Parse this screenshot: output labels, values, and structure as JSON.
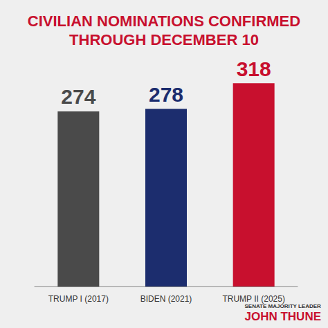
{
  "chart_data": {
    "type": "bar",
    "title": "CIVILIAN NOMINATIONS CONFIRMED THROUGH DECEMBER 10",
    "categories": [
      "TRUMP I (2017)",
      "BIDEN (2021)",
      "TRUMP II (2025)"
    ],
    "values": [
      274,
      278,
      318
    ],
    "colors": [
      "#4a4a4a",
      "#1c2d6e",
      "#c8102e"
    ],
    "ylim": [
      0,
      340
    ],
    "grid": false,
    "data_labels": true,
    "tick_labels": "x",
    "annotations": [
      "SENATE MAJORITY LEADER",
      "JOHN THUNE"
    ]
  }
}
